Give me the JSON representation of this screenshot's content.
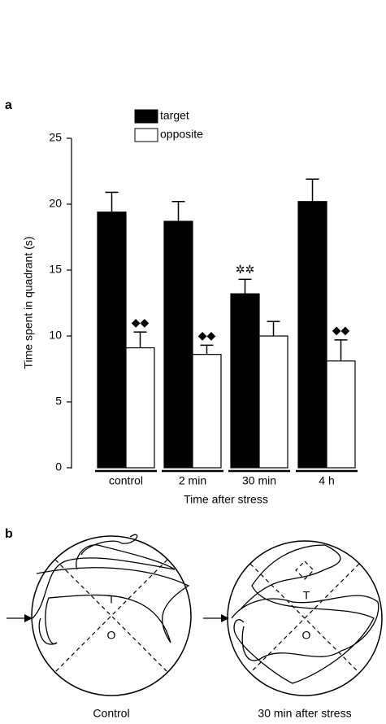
{
  "chart_data": {
    "type": "bar",
    "categories": [
      "control",
      "2 min",
      "30 min",
      "4 h"
    ],
    "series": [
      {
        "name": "target",
        "color": "#000000",
        "values": [
          19.4,
          18.7,
          13.2,
          20.2
        ],
        "errors": [
          1.5,
          1.5,
          1.1,
          1.7
        ],
        "value_annotations": [
          null,
          null,
          "✲✲",
          null
        ]
      },
      {
        "name": "opposite",
        "color": "#ffffff",
        "values": [
          9.1,
          8.6,
          10.0,
          8.1
        ],
        "errors": [
          1.2,
          0.7,
          1.1,
          1.6
        ],
        "value_annotations": [
          "◆◆",
          "◆◆",
          null,
          "◆◆"
        ]
      }
    ],
    "x_label": "Time after stress",
    "y_label": "Time spent in quadrant (s)",
    "ylim": [
      0,
      25
    ],
    "yticks": [
      0,
      5,
      10,
      15,
      20,
      25
    ],
    "legend": "top-left"
  },
  "panel_labels": [
    "a",
    "b"
  ],
  "panel_b": {
    "mazes": [
      {
        "caption": "Control",
        "target": "T",
        "opposite": "O"
      },
      {
        "caption": "30 min after stress",
        "target": "T",
        "opposite": "O"
      }
    ]
  }
}
